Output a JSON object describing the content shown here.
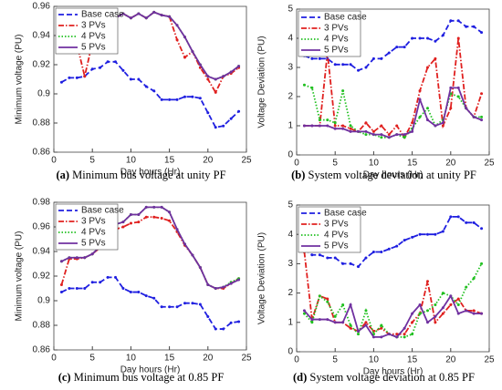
{
  "chart_data": [
    {
      "type": "line",
      "label": "(a)",
      "caption": "Minimum bus voltage at unity PF",
      "xlabel": "Day hours (Hr)",
      "ylabel": "Minimum voltage (PU)",
      "x": [
        1,
        2,
        3,
        4,
        5,
        6,
        7,
        8,
        9,
        10,
        11,
        12,
        13,
        14,
        15,
        16,
        17,
        18,
        19,
        20,
        21,
        22,
        23,
        24
      ],
      "xlim": [
        0,
        25
      ],
      "xticks": [
        0,
        5,
        10,
        15,
        20,
        25
      ],
      "ylim": [
        0.86,
        0.96
      ],
      "yticks": [
        0.86,
        0.88,
        0.9,
        0.92,
        0.94,
        0.96
      ],
      "legend": "upper left",
      "series": [
        {
          "name": "Base case",
          "color": "#1f1fe0",
          "dash": "dashed",
          "values": [
            0.908,
            0.911,
            0.911,
            0.912,
            0.917,
            0.918,
            0.922,
            0.922,
            0.916,
            0.91,
            0.91,
            0.905,
            0.902,
            0.896,
            0.896,
            0.896,
            0.898,
            0.898,
            0.897,
            0.887,
            0.877,
            0.878,
            0.883,
            0.888
          ]
        },
        {
          "name": "3 PVs",
          "color": "#e0201f",
          "dash": "dashdot",
          "values": [
            0.932,
            0.934,
            0.934,
            0.912,
            0.935,
            0.941,
            0.946,
            0.952,
            0.955,
            0.952,
            0.955,
            0.952,
            0.956,
            0.954,
            0.953,
            0.937,
            0.925,
            0.929,
            0.918,
            0.91,
            0.901,
            0.912,
            0.914,
            0.918
          ]
        },
        {
          "name": "4 PVs",
          "color": "#20c020",
          "dash": "dotted",
          "values": [
            0.932,
            0.934,
            0.934,
            0.934,
            0.935,
            0.941,
            0.946,
            0.952,
            0.955,
            0.952,
            0.955,
            0.952,
            0.956,
            0.954,
            0.953,
            0.947,
            0.939,
            0.929,
            0.92,
            0.912,
            0.91,
            0.912,
            0.915,
            0.919
          ]
        },
        {
          "name": "5 PVs",
          "color": "#7030a0",
          "dash": "solid",
          "values": [
            0.932,
            0.934,
            0.934,
            0.934,
            0.935,
            0.941,
            0.946,
            0.952,
            0.955,
            0.952,
            0.955,
            0.952,
            0.956,
            0.954,
            0.953,
            0.947,
            0.939,
            0.929,
            0.92,
            0.912,
            0.91,
            0.912,
            0.915,
            0.919
          ]
        }
      ]
    },
    {
      "type": "line",
      "label": "(b)",
      "caption": "System voltage deviation at unity PF",
      "xlabel": "Day hours (Hr)",
      "ylabel": "Voltage Deviation (PU)",
      "x": [
        1,
        2,
        3,
        4,
        5,
        6,
        7,
        8,
        9,
        10,
        11,
        12,
        13,
        14,
        15,
        16,
        17,
        18,
        19,
        20,
        21,
        22,
        23,
        24
      ],
      "xlim": [
        0,
        25
      ],
      "xticks": [
        0,
        5,
        10,
        15,
        20,
        25
      ],
      "ylim": [
        0,
        5
      ],
      "yticks": [
        0,
        1,
        2,
        3,
        4,
        5
      ],
      "legend": "upper left",
      "series": [
        {
          "name": "Base case",
          "color": "#1f1fe0",
          "dash": "dashed",
          "values": [
            3.4,
            3.3,
            3.3,
            3.3,
            3.1,
            3.1,
            3.1,
            2.9,
            3.0,
            3.3,
            3.3,
            3.5,
            3.7,
            3.7,
            4.0,
            4.0,
            4.0,
            3.9,
            4.1,
            4.6,
            4.6,
            4.4,
            4.4,
            4.2
          ]
        },
        {
          "name": "3 PVs",
          "color": "#e0201f",
          "dash": "dashdot",
          "values": [
            1.0,
            1.0,
            1.0,
            3.5,
            1.0,
            1.0,
            0.9,
            0.8,
            1.1,
            0.8,
            1.0,
            0.7,
            1.0,
            0.6,
            1.1,
            2.2,
            3.0,
            3.3,
            1.0,
            1.6,
            4.0,
            1.6,
            1.3,
            2.1
          ]
        },
        {
          "name": "4 PVs",
          "color": "#20c020",
          "dash": "dotted",
          "values": [
            2.4,
            2.3,
            1.2,
            1.2,
            1.1,
            2.2,
            1.0,
            0.8,
            0.7,
            0.7,
            0.6,
            0.6,
            0.7,
            0.6,
            0.9,
            1.3,
            1.6,
            1.0,
            1.2,
            2.1,
            2.0,
            1.6,
            1.3,
            1.3
          ]
        },
        {
          "name": "5 PVs",
          "color": "#7030a0",
          "dash": "solid",
          "values": [
            1.0,
            1.0,
            1.0,
            1.0,
            0.9,
            0.9,
            0.8,
            0.8,
            0.8,
            0.7,
            0.7,
            0.6,
            0.7,
            0.7,
            0.8,
            1.9,
            1.2,
            1.0,
            1.1,
            2.3,
            2.3,
            1.6,
            1.3,
            1.2
          ]
        }
      ]
    },
    {
      "type": "line",
      "label": "(c)",
      "caption": "Minimum bus voltage at 0.85 PF",
      "xlabel": "Day hours (Hr)",
      "ylabel": "Minimum voltage (PU)",
      "x": [
        1,
        2,
        3,
        4,
        5,
        6,
        7,
        8,
        9,
        10,
        11,
        12,
        13,
        14,
        15,
        16,
        17,
        18,
        19,
        20,
        21,
        22,
        23,
        24
      ],
      "xlim": [
        0,
        25
      ],
      "xticks": [
        0,
        5,
        10,
        15,
        20,
        25
      ],
      "ylim": [
        0.86,
        0.98
      ],
      "yticks": [
        0.86,
        0.88,
        0.9,
        0.92,
        0.94,
        0.96,
        0.98
      ],
      "legend": "upper left",
      "series": [
        {
          "name": "Base case",
          "color": "#1f1fe0",
          "dash": "dashed",
          "values": [
            0.907,
            0.91,
            0.91,
            0.91,
            0.915,
            0.915,
            0.919,
            0.919,
            0.91,
            0.907,
            0.907,
            0.904,
            0.902,
            0.895,
            0.895,
            0.895,
            0.898,
            0.898,
            0.897,
            0.887,
            0.877,
            0.877,
            0.882,
            0.883
          ]
        },
        {
          "name": "3 PVs",
          "color": "#e0201f",
          "dash": "dashdot",
          "values": [
            0.913,
            0.934,
            0.934,
            0.935,
            0.938,
            0.943,
            0.952,
            0.958,
            0.96,
            0.963,
            0.964,
            0.968,
            0.968,
            0.967,
            0.965,
            0.956,
            0.945,
            0.937,
            0.927,
            0.913,
            0.91,
            0.91,
            0.914,
            0.918
          ]
        },
        {
          "name": "4 PVs",
          "color": "#20c020",
          "dash": "dotted",
          "values": [
            0.932,
            0.935,
            0.935,
            0.935,
            0.938,
            0.944,
            0.953,
            0.962,
            0.964,
            0.97,
            0.97,
            0.976,
            0.976,
            0.976,
            0.972,
            0.958,
            0.946,
            0.937,
            0.927,
            0.913,
            0.91,
            0.911,
            0.915,
            0.918
          ]
        },
        {
          "name": "5 PVs",
          "color": "#7030a0",
          "dash": "solid",
          "values": [
            0.932,
            0.935,
            0.935,
            0.935,
            0.938,
            0.944,
            0.953,
            0.962,
            0.964,
            0.97,
            0.97,
            0.976,
            0.976,
            0.976,
            0.972,
            0.958,
            0.946,
            0.937,
            0.927,
            0.913,
            0.91,
            0.911,
            0.914,
            0.917
          ]
        }
      ]
    },
    {
      "type": "line",
      "label": "(d)",
      "caption": "System voltage deviation at 0.85 PF",
      "xlabel": "Day hours (Hr)",
      "ylabel": "Voltage Deviation (PU)",
      "x": [
        1,
        2,
        3,
        4,
        5,
        6,
        7,
        8,
        9,
        10,
        11,
        12,
        13,
        14,
        15,
        16,
        17,
        18,
        19,
        20,
        21,
        22,
        23,
        24
      ],
      "xlim": [
        0,
        25
      ],
      "xticks": [
        0,
        5,
        10,
        15,
        20,
        25
      ],
      "ylim": [
        0,
        5
      ],
      "yticks": [
        0,
        1,
        2,
        3,
        4,
        5
      ],
      "legend": "upper left",
      "series": [
        {
          "name": "Base case",
          "color": "#1f1fe0",
          "dash": "dashed",
          "values": [
            3.5,
            3.3,
            3.3,
            3.2,
            3.2,
            3.0,
            3.0,
            2.9,
            3.2,
            3.4,
            3.4,
            3.5,
            3.6,
            3.8,
            3.9,
            4.0,
            4.0,
            4.0,
            4.1,
            4.6,
            4.6,
            4.4,
            4.4,
            4.2
          ]
        },
        {
          "name": "3 PVs",
          "color": "#e0201f",
          "dash": "dashdot",
          "values": [
            3.4,
            1.1,
            1.9,
            1.8,
            1.0,
            1.0,
            0.8,
            0.7,
            1.0,
            0.7,
            0.8,
            0.6,
            0.6,
            0.6,
            1.0,
            1.3,
            2.4,
            1.0,
            1.3,
            1.6,
            1.8,
            1.4,
            1.4,
            1.3
          ]
        },
        {
          "name": "4 PVs",
          "color": "#20c020",
          "dash": "dotted",
          "values": [
            1.3,
            1.0,
            1.9,
            1.7,
            1.2,
            1.6,
            0.9,
            0.6,
            1.4,
            0.6,
            0.9,
            0.6,
            0.5,
            0.5,
            0.6,
            1.3,
            1.4,
            1.6,
            2.0,
            1.9,
            1.6,
            2.2,
            2.5,
            3.0
          ]
        },
        {
          "name": "5 PVs",
          "color": "#7030a0",
          "dash": "solid",
          "values": [
            1.4,
            1.1,
            1.1,
            1.1,
            1.0,
            1.0,
            1.6,
            0.7,
            0.9,
            0.5,
            0.5,
            0.6,
            0.5,
            0.8,
            1.3,
            1.6,
            1.0,
            1.2,
            1.5,
            1.9,
            1.3,
            1.4,
            1.3,
            1.3
          ]
        }
      ]
    }
  ]
}
